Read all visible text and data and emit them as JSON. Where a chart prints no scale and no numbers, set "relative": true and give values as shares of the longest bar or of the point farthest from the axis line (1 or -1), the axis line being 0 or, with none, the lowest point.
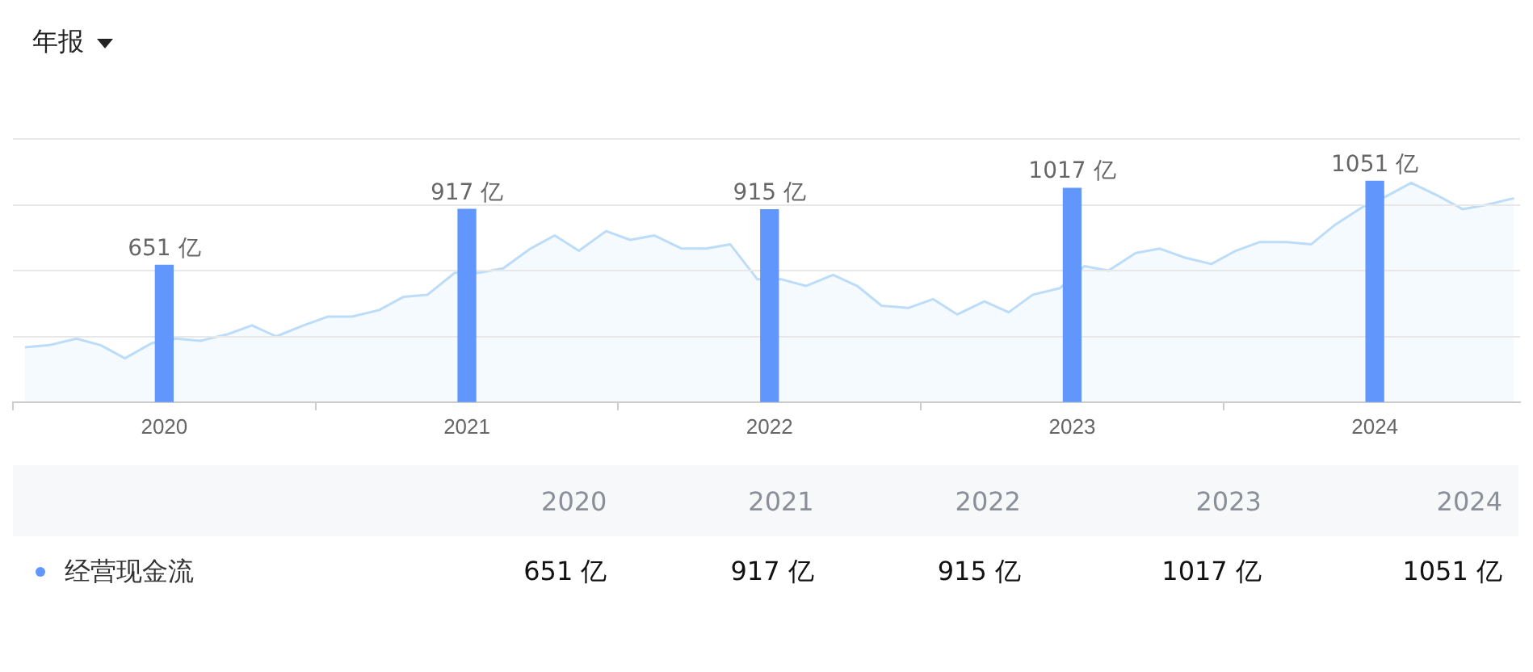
{
  "chart_data": [
    {
      "type": "bar",
      "title": "年报",
      "x": [
        2020,
        2021,
        2022,
        2023,
        2024
      ],
      "xlim": [
        2019.5,
        2024.48
      ],
      "xticks": [
        {
          "value": 2020,
          "label": "2020"
        },
        {
          "value": 2021,
          "label": "2021"
        },
        {
          "value": 2022,
          "label": "2022"
        },
        {
          "value": 2023,
          "label": "2023"
        },
        {
          "value": 2024,
          "label": "2024"
        }
      ],
      "ylim": [
        0,
        1252
      ],
      "yticks": [
        {
          "value": 0,
          "label": null
        },
        {
          "value": 313,
          "label": null
        },
        {
          "value": 626,
          "label": null
        },
        {
          "value": 939,
          "label": null
        },
        {
          "value": 1252,
          "label": null
        }
      ],
      "grid": "y",
      "tick_labels": "x",
      "legend": "bottom",
      "series": [
        {
          "name": "经营现金流",
          "color": "#6197fc",
          "values": [
            651,
            917,
            915,
            1017,
            1051
          ],
          "value_labels": [
            "651 亿",
            "917 亿",
            "915 亿",
            "1017 亿",
            "1051 亿"
          ]
        }
      ]
    },
    {
      "type": "area",
      "relative": true,
      "xlim": [
        2019.5,
        2024.48
      ],
      "tick_labels": false,
      "marker": "none",
      "x": [
        2019.54,
        2019.62,
        2019.71,
        2019.79,
        2019.87,
        2019.96,
        2020.04,
        2020.12,
        2020.21,
        2020.29,
        2020.37,
        2020.46,
        2020.54,
        2020.62,
        2020.71,
        2020.79,
        2020.87,
        2020.96,
        2021.04,
        2021.12,
        2021.21,
        2021.29,
        2021.37,
        2021.46,
        2021.54,
        2021.62,
        2021.71,
        2021.79,
        2021.87,
        2021.96,
        2022.04,
        2022.12,
        2022.21,
        2022.29,
        2022.37,
        2022.46,
        2022.54,
        2022.62,
        2022.71,
        2022.79,
        2022.87,
        2022.96,
        2023.04,
        2023.12,
        2023.21,
        2023.29,
        2023.37,
        2023.46,
        2023.54,
        2023.62,
        2023.71,
        2023.79,
        2023.87,
        2023.96,
        2024.04,
        2024.12,
        2024.21,
        2024.29,
        2024.37,
        2024.46
      ],
      "series": [
        {
          "color": "#bcdcf8",
          "values": [
            0.25,
            0.26,
            0.29,
            0.26,
            0.2,
            0.27,
            0.29,
            0.28,
            0.31,
            0.35,
            0.3,
            0.35,
            0.39,
            0.39,
            0.42,
            0.48,
            0.49,
            0.59,
            0.59,
            0.61,
            0.7,
            0.76,
            0.69,
            0.78,
            0.74,
            0.76,
            0.7,
            0.7,
            0.72,
            0.56,
            0.56,
            0.53,
            0.58,
            0.53,
            0.44,
            0.43,
            0.47,
            0.4,
            0.46,
            0.41,
            0.49,
            0.52,
            0.62,
            0.6,
            0.68,
            0.7,
            0.66,
            0.63,
            0.69,
            0.73,
            0.73,
            0.72,
            0.81,
            0.89,
            0.94,
            1,
            0.94,
            0.88,
            0.9,
            0.93
          ]
        }
      ]
    }
  ]
}
